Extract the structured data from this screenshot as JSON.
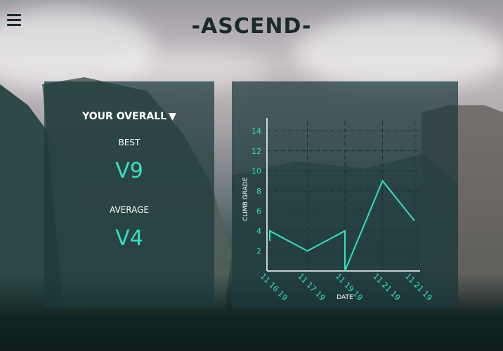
{
  "app": {
    "title": "-ASCEND-"
  },
  "stats": {
    "overall_label": "YOUR OVERALL",
    "best_label": "BEST",
    "best_value": "V9",
    "average_label": "AVERAGE",
    "average_value": "V4"
  },
  "colors": {
    "accent": "#35e0c0",
    "panel": "#1c383a",
    "title": "#1a2a2b"
  },
  "icons": {
    "menu": "hamburger-icon",
    "dropdown": "triangle-down-icon"
  },
  "chart_data": {
    "type": "line",
    "xlabel": "DATE",
    "ylabel": "CLIMB GRADE",
    "ylim": [
      0,
      15
    ],
    "yticks": [
      2,
      4,
      6,
      8,
      10,
      12,
      14
    ],
    "grid": true,
    "x_ticks": [
      "11 16 19",
      "11 17 19",
      "11 19 19",
      "11 21 19",
      "11 21 19"
    ],
    "points": [
      {
        "x": "11 16 19",
        "y": 3
      },
      {
        "x": "11 16 19",
        "y": 4
      },
      {
        "x": "11 17 19",
        "y": 2
      },
      {
        "x": "11 19 19",
        "y": 4
      },
      {
        "x": "11 19 19",
        "y": 0
      },
      {
        "x": "11 21 19",
        "y": 9
      },
      {
        "x": "11 21 19",
        "y": 5
      }
    ]
  }
}
